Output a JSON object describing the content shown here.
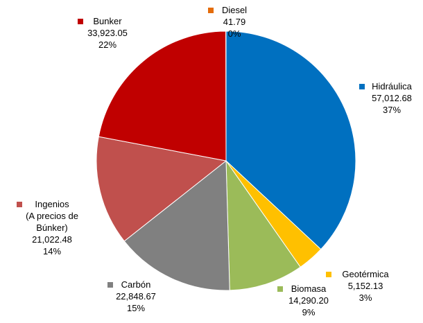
{
  "chart_data": {
    "type": "pie",
    "categories": [
      "Hidráulica",
      "Geotérmica",
      "Biomasa",
      "Carbón",
      "Ingenios\n(A precios de\nBúnker)",
      "Bunker",
      "Diesel"
    ],
    "values": [
      57012.68,
      5152.13,
      14290.2,
      22848.67,
      21022.48,
      33923.05,
      41.79
    ],
    "value_labels": [
      "57,012.68",
      "5,152.13",
      "14,290.20",
      "22,848.67",
      "21,022.48",
      "33,923.05",
      "41.79"
    ],
    "percentages": [
      {
        "value": 37,
        "label": "37%"
      },
      {
        "value": 3,
        "label": "3%"
      },
      {
        "value": 9,
        "label": "9%"
      },
      {
        "value": 15,
        "label": "15%"
      },
      {
        "value": 14,
        "label": "14%"
      },
      {
        "value": 22,
        "label": "22%"
      },
      {
        "value": 0,
        "label": "0%"
      }
    ],
    "colors": [
      "#0070C0",
      "#FFC000",
      "#9BBB59",
      "#808080",
      "#C0504D",
      "#C00000",
      "#E46C0A"
    ]
  }
}
